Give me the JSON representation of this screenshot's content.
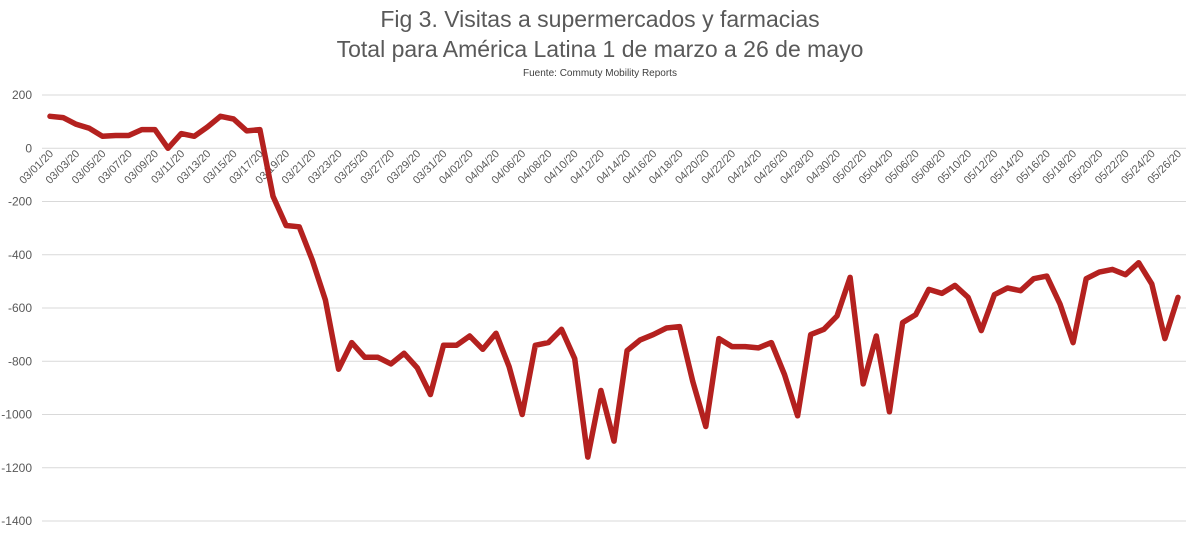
{
  "chart_data": {
    "type": "line",
    "title": "Fig 3. Visitas a supermercados y farmacias",
    "subtitle": "Total para América Latina 1 de marzo a 26 de mayo",
    "source": "Fuente: Commuty Mobility Reports",
    "xlabel": "",
    "ylabel": "",
    "ylim": [
      -1400,
      200
    ],
    "yticks": [
      200,
      0,
      -200,
      -400,
      -600,
      -800,
      -1000,
      -1200,
      -1400
    ],
    "grid": true,
    "legend": "none",
    "line_color": "#b4211f",
    "x_tick_labels": [
      "03/01/20",
      "03/03/20",
      "03/05/20",
      "03/07/20",
      "03/09/20",
      "03/11/20",
      "03/13/20",
      "03/15/20",
      "03/17/20",
      "03/19/20",
      "03/21/20",
      "03/23/20",
      "03/25/20",
      "03/27/20",
      "03/29/20",
      "03/31/20",
      "04/02/20",
      "04/04/20",
      "04/06/20",
      "04/08/20",
      "04/10/20",
      "04/12/20",
      "04/14/20",
      "04/16/20",
      "04/18/20",
      "04/20/20",
      "04/22/20",
      "04/24/20",
      "04/26/20",
      "04/28/20",
      "04/30/20",
      "05/02/20",
      "05/04/20",
      "05/06/20",
      "05/08/20",
      "05/10/20",
      "05/12/20",
      "05/14/20",
      "05/16/20",
      "05/18/20",
      "05/20/20",
      "05/22/20",
      "05/24/20",
      "05/26/20"
    ],
    "x": [
      "03/01/20",
      "03/02/20",
      "03/03/20",
      "03/04/20",
      "03/05/20",
      "03/06/20",
      "03/07/20",
      "03/08/20",
      "03/09/20",
      "03/10/20",
      "03/11/20",
      "03/12/20",
      "03/13/20",
      "03/14/20",
      "03/15/20",
      "03/16/20",
      "03/17/20",
      "03/18/20",
      "03/19/20",
      "03/20/20",
      "03/21/20",
      "03/22/20",
      "03/23/20",
      "03/24/20",
      "03/25/20",
      "03/26/20",
      "03/27/20",
      "03/28/20",
      "03/29/20",
      "03/30/20",
      "03/31/20",
      "04/01/20",
      "04/02/20",
      "04/03/20",
      "04/04/20",
      "04/05/20",
      "04/06/20",
      "04/07/20",
      "04/08/20",
      "04/09/20",
      "04/10/20",
      "04/11/20",
      "04/12/20",
      "04/13/20",
      "04/14/20",
      "04/15/20",
      "04/16/20",
      "04/17/20",
      "04/18/20",
      "04/19/20",
      "04/20/20",
      "04/21/20",
      "04/22/20",
      "04/23/20",
      "04/24/20",
      "04/25/20",
      "04/26/20",
      "04/27/20",
      "04/28/20",
      "04/29/20",
      "04/30/20",
      "05/01/20",
      "05/02/20",
      "05/03/20",
      "05/04/20",
      "05/05/20",
      "05/06/20",
      "05/07/20",
      "05/08/20",
      "05/09/20",
      "05/10/20",
      "05/11/20",
      "05/12/20",
      "05/13/20",
      "05/14/20",
      "05/15/20",
      "05/16/20",
      "05/17/20",
      "05/18/20",
      "05/19/20",
      "05/20/20",
      "05/21/20",
      "05/22/20",
      "05/23/20",
      "05/24/20",
      "05/25/20",
      "05/26/20"
    ],
    "values": [
      120,
      115,
      90,
      75,
      45,
      48,
      48,
      70,
      70,
      0,
      55,
      45,
      80,
      120,
      110,
      65,
      70,
      -180,
      -290,
      -295,
      -420,
      -570,
      -830,
      -730,
      -785,
      -785,
      -810,
      -770,
      -825,
      -925,
      -740,
      -740,
      -705,
      -755,
      -695,
      -820,
      -1000,
      -740,
      -730,
      -680,
      -790,
      -1160,
      -910,
      -1100,
      -760,
      -720,
      -700,
      -675,
      -670,
      -875,
      -1045,
      -715,
      -745,
      -745,
      -750,
      -730,
      -850,
      -1005,
      -700,
      -680,
      -630,
      -485,
      -885,
      -705,
      -990,
      -655,
      -625,
      -530,
      -545,
      -515,
      -560,
      -685,
      -550,
      -525,
      -535,
      -490,
      -480,
      -585,
      -730,
      -490,
      -465,
      -455,
      -475,
      -430,
      -510,
      -715,
      -560
    ]
  }
}
